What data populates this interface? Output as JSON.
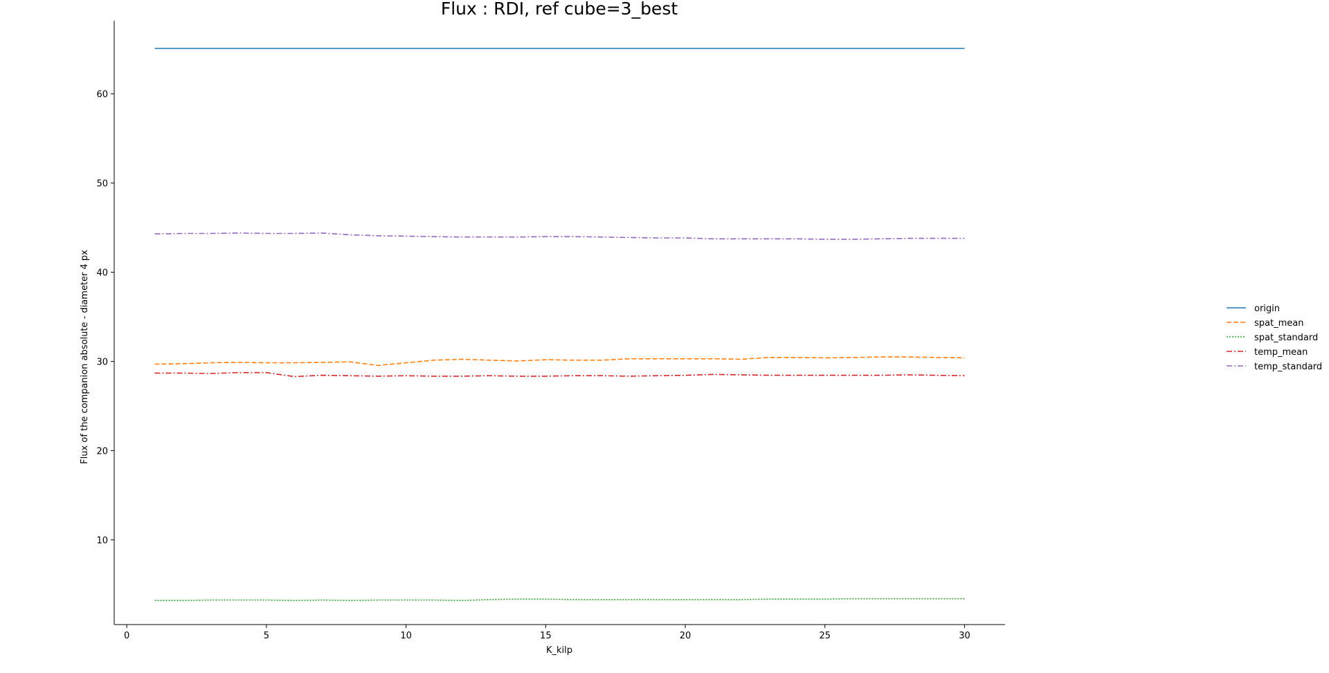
{
  "chart_data": {
    "type": "line",
    "title": "Flux : RDI, ref cube=3_best",
    "xlabel": "K_kilp",
    "ylabel": "Flux of the companion absolute - diameter 4 px",
    "xlim": [
      -0.45,
      31.45
    ],
    "ylim": [
      0.5,
      68.2
    ],
    "xticks": [
      0,
      5,
      10,
      15,
      20,
      25,
      30
    ],
    "yticks": [
      10,
      20,
      30,
      40,
      50,
      60
    ],
    "grid": false,
    "legend_position": "center-right",
    "x": [
      1,
      2,
      3,
      4,
      5,
      6,
      7,
      8,
      9,
      10,
      11,
      12,
      13,
      14,
      15,
      16,
      17,
      18,
      19,
      20,
      21,
      22,
      23,
      24,
      25,
      26,
      27,
      28,
      29,
      30
    ],
    "series": [
      {
        "name": "origin",
        "color": "#1f77b4",
        "dash": "solid",
        "values": [
          65.1,
          65.1,
          65.1,
          65.1,
          65.1,
          65.1,
          65.1,
          65.1,
          65.1,
          65.1,
          65.1,
          65.1,
          65.1,
          65.1,
          65.1,
          65.1,
          65.1,
          65.1,
          65.1,
          65.1,
          65.1,
          65.1,
          65.1,
          65.1,
          65.1,
          65.1,
          65.1,
          65.1,
          65.1,
          65.1
        ]
      },
      {
        "name": "spat_mean",
        "color": "#ff7f0e",
        "dash": "dashed",
        "values": [
          29.7,
          29.75,
          29.85,
          29.9,
          29.85,
          29.85,
          29.9,
          29.95,
          29.55,
          29.85,
          30.15,
          30.25,
          30.15,
          30.05,
          30.2,
          30.15,
          30.15,
          30.3,
          30.3,
          30.3,
          30.3,
          30.25,
          30.45,
          30.45,
          30.4,
          30.45,
          30.5,
          30.5,
          30.45,
          30.4
        ]
      },
      {
        "name": "spat_standard",
        "color": "#2ca02c",
        "dash": "dotted",
        "values": [
          3.2,
          3.2,
          3.25,
          3.25,
          3.25,
          3.2,
          3.25,
          3.2,
          3.25,
          3.25,
          3.25,
          3.2,
          3.3,
          3.35,
          3.35,
          3.3,
          3.3,
          3.3,
          3.3,
          3.3,
          3.3,
          3.3,
          3.35,
          3.35,
          3.35,
          3.4,
          3.4,
          3.4,
          3.4,
          3.4
        ]
      },
      {
        "name": "temp_mean",
        "color": "#d62728",
        "dash": "dashdot",
        "values": [
          28.7,
          28.7,
          28.65,
          28.75,
          28.75,
          28.3,
          28.45,
          28.4,
          28.35,
          28.4,
          28.35,
          28.35,
          28.4,
          28.35,
          28.35,
          28.4,
          28.4,
          28.35,
          28.4,
          28.45,
          28.55,
          28.5,
          28.45,
          28.45,
          28.45,
          28.45,
          28.45,
          28.5,
          28.45,
          28.4
        ]
      },
      {
        "name": "temp_standard",
        "color": "#9467bd",
        "dash": "dashdot",
        "values": [
          44.3,
          44.35,
          44.35,
          44.4,
          44.35,
          44.35,
          44.4,
          44.2,
          44.1,
          44.05,
          44.0,
          43.95,
          43.95,
          43.95,
          44.0,
          44.0,
          43.95,
          43.9,
          43.85,
          43.85,
          43.75,
          43.75,
          43.75,
          43.75,
          43.7,
          43.7,
          43.75,
          43.8,
          43.8,
          43.8
        ]
      }
    ]
  }
}
